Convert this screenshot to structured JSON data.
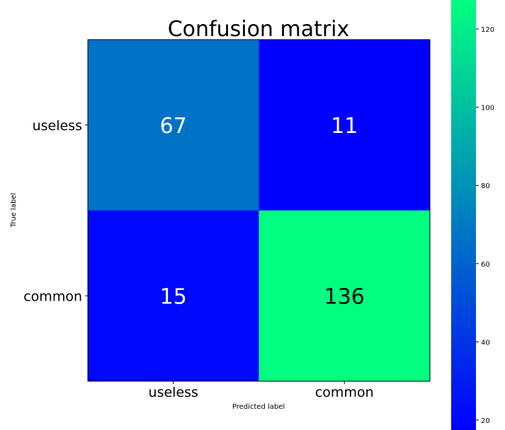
{
  "chart_data": {
    "type": "heatmap",
    "title": "Confusion matrix",
    "xlabel": "Predicted label",
    "ylabel": "True label",
    "x_categories": [
      "useless",
      "common"
    ],
    "y_categories": [
      "useless",
      "common"
    ],
    "values": [
      [
        67,
        11
      ],
      [
        15,
        136
      ]
    ],
    "colormap": "winter",
    "colormap_colors": [
      "#0000ff",
      "#00ff80"
    ],
    "colorbar": {
      "range": [
        11,
        136
      ],
      "ticks": [
        20,
        40,
        60,
        80,
        100,
        120
      ]
    },
    "grid": false,
    "legend": "colorbar-right"
  }
}
